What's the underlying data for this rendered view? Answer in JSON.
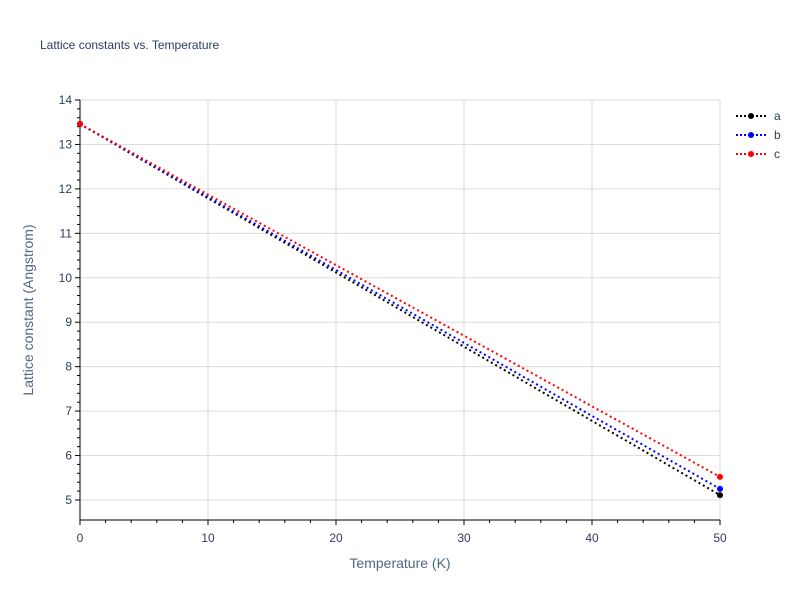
{
  "chart_data": {
    "type": "line",
    "title": "Lattice constants vs. Temperature",
    "xlabel": "Temperature (K)",
    "ylabel": "Lattice constant (Angstrom)",
    "xlim": [
      0,
      50
    ],
    "ylim": [
      4.55,
      14
    ],
    "x_ticks": [
      0,
      10,
      20,
      30,
      40,
      50
    ],
    "y_ticks": [
      5,
      6,
      7,
      8,
      9,
      10,
      11,
      12,
      13,
      14
    ],
    "grid": true,
    "legend_position": "right-top",
    "x": [
      0,
      50
    ],
    "series": [
      {
        "name": "a",
        "color": "#000000",
        "values": [
          13.46,
          5.11
        ]
      },
      {
        "name": "b",
        "color": "#0000ff",
        "values": [
          13.46,
          5.25
        ]
      },
      {
        "name": "c",
        "color": "#ff0000",
        "values": [
          13.46,
          5.52
        ]
      }
    ]
  }
}
